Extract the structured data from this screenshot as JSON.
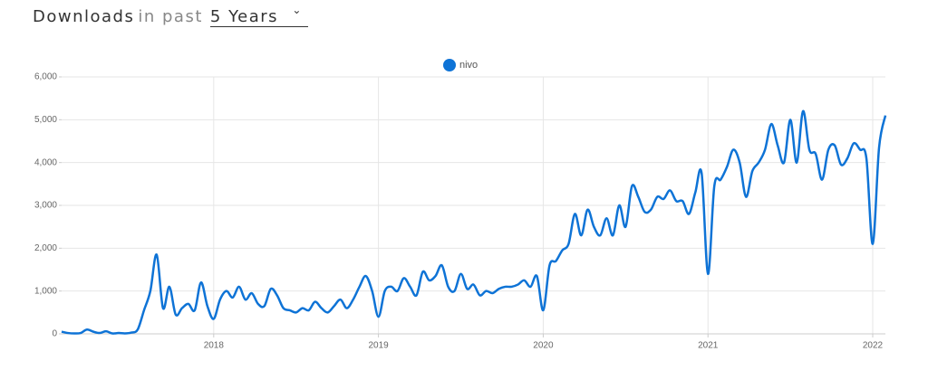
{
  "header": {
    "title": "Downloads",
    "connector": "in past",
    "period": "5 Years"
  },
  "chart_data": {
    "type": "line",
    "categories": [
      null,
      null,
      null,
      null,
      null,
      null,
      null,
      null,
      null,
      null,
      null,
      null,
      null,
      null,
      null,
      null,
      null,
      null,
      null,
      null,
      null,
      null,
      null,
      null,
      "2018",
      null,
      null,
      null,
      null,
      null,
      null,
      null,
      null,
      null,
      null,
      null,
      null,
      null,
      null,
      null,
      null,
      null,
      null,
      null,
      null,
      null,
      null,
      null,
      null,
      null,
      "2019",
      null,
      null,
      null,
      null,
      null,
      null,
      null,
      null,
      null,
      null,
      null,
      null,
      null,
      null,
      null,
      null,
      null,
      null,
      null,
      null,
      null,
      null,
      null,
      null,
      null,
      "2020",
      null,
      null,
      null,
      null,
      null,
      null,
      null,
      null,
      null,
      null,
      null,
      null,
      null,
      null,
      null,
      null,
      null,
      null,
      null,
      null,
      null,
      null,
      null,
      null,
      null,
      "2021",
      null,
      null,
      null,
      null,
      null,
      null,
      null,
      null,
      null,
      null,
      null,
      null,
      null,
      null,
      null,
      null,
      null,
      null,
      null,
      null,
      null,
      null,
      null,
      null,
      null,
      "2022",
      null,
      null
    ],
    "series": [
      {
        "name": "nivo",
        "color": "#0e73d6",
        "values": [
          50,
          20,
          10,
          20,
          100,
          50,
          20,
          60,
          10,
          20,
          10,
          30,
          100,
          550,
          1000,
          1850,
          600,
          1100,
          450,
          600,
          700,
          550,
          1200,
          650,
          350,
          800,
          1000,
          850,
          1100,
          800,
          950,
          700,
          650,
          1050,
          900,
          600,
          550,
          500,
          600,
          550,
          750,
          600,
          500,
          650,
          800,
          600,
          800,
          1100,
          1350,
          1000,
          400,
          1000,
          1100,
          1000,
          1300,
          1100,
          900,
          1450,
          1250,
          1350,
          1600,
          1100,
          1000,
          1400,
          1050,
          1150,
          900,
          1000,
          950,
          1050,
          1100,
          1100,
          1150,
          1250,
          1100,
          1350,
          550,
          1600,
          1700,
          1950,
          2100,
          2800,
          2300,
          2900,
          2500,
          2300,
          2700,
          2300,
          3000,
          2500,
          3450,
          3200,
          2850,
          2900,
          3200,
          3150,
          3350,
          3100,
          3100,
          2800,
          3300,
          3750,
          1400,
          3450,
          3600,
          3900,
          4300,
          4000,
          3200,
          3800,
          4000,
          4300,
          4900,
          4400,
          4000,
          5000,
          4000,
          5200,
          4300,
          4200,
          3600,
          4300,
          4400,
          3950,
          4100,
          4450,
          4300,
          4100,
          2100,
          4350,
          5100
        ]
      }
    ],
    "ylim": [
      0,
      6000
    ],
    "yticks": [
      0,
      {
        "value": 1000,
        "label": "1,000"
      },
      {
        "value": 2000,
        "label": "2,000"
      },
      {
        "value": 3000,
        "label": "3,000"
      },
      {
        "value": 4000,
        "label": "4,000"
      },
      {
        "value": 5000,
        "label": "5,000"
      },
      {
        "value": 6000,
        "label": "6,000"
      }
    ],
    "grid": true,
    "legend": "top"
  }
}
